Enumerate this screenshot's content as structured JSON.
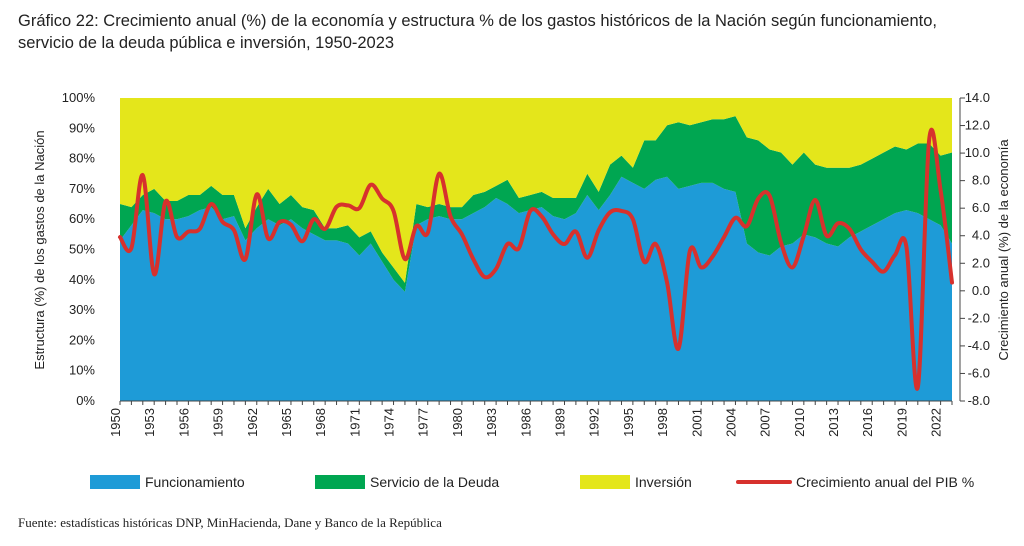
{
  "header": {
    "title_line1": "Gráfico 22: Crecimiento anual (%) de la economía y estructura % de los gastos históricos de la Nación según funcionamiento,",
    "title_line2": "servicio de la deuda pública e inversión, 1950-2023"
  },
  "footer": {
    "source": "Fuente: estadísticas históricas DNP, MinHacienda, Dane y Banco de la República"
  },
  "chart_data": {
    "type": "area",
    "ylabel_left": "Estructura (%) de los gastos de la Nación",
    "ylabel_right": "Crecimiento anual (%) de la economía",
    "ylim_left": [
      0,
      100
    ],
    "ylim_right": [
      -8,
      14
    ],
    "yticks_left": [
      "0%",
      "10%",
      "20%",
      "30%",
      "40%",
      "50%",
      "60%",
      "70%",
      "80%",
      "90%",
      "100%"
    ],
    "yticks_right": [
      "-8.0",
      "-6.0",
      "-4.0",
      "-2.0",
      "0.0",
      "2.0",
      "4.0",
      "6.0",
      "8.0",
      "10.0",
      "12.0",
      "14.0"
    ],
    "xticks": [
      "1950",
      "1953",
      "1956",
      "1959",
      "1962",
      "1965",
      "1968",
      "1971",
      "1974",
      "1977",
      "1980",
      "1983",
      "1986",
      "1989",
      "1992",
      "1995",
      "1998",
      "2001",
      "2004",
      "2007",
      "2010",
      "2013",
      "2016",
      "2019",
      "2022"
    ],
    "x": [
      1950,
      1951,
      1952,
      1953,
      1954,
      1955,
      1956,
      1957,
      1958,
      1959,
      1960,
      1961,
      1962,
      1963,
      1964,
      1965,
      1966,
      1967,
      1968,
      1969,
      1970,
      1971,
      1972,
      1973,
      1974,
      1975,
      1976,
      1977,
      1978,
      1979,
      1980,
      1981,
      1982,
      1983,
      1984,
      1985,
      1986,
      1987,
      1988,
      1989,
      1990,
      1991,
      1992,
      1993,
      1994,
      1995,
      1996,
      1997,
      1998,
      1999,
      2000,
      2001,
      2002,
      2003,
      2004,
      2005,
      2006,
      2007,
      2008,
      2009,
      2010,
      2011,
      2012,
      2013,
      2014,
      2015,
      2016,
      2017,
      2018,
      2019,
      2020,
      2021,
      2022,
      2023
    ],
    "legend": [
      "Funcionamiento",
      "Servicio de la Deuda",
      "Inversión",
      "Crecimiento anual del PIB %"
    ],
    "legend_position": "bottom",
    "series": [
      {
        "name": "Funcionamiento",
        "type": "area",
        "axis": "left",
        "color": "#1E9BD7",
        "values": [
          53,
          58,
          63,
          62,
          60,
          60,
          61,
          63,
          64,
          60,
          61,
          53,
          57,
          60,
          58,
          60,
          57,
          55,
          53,
          53,
          52,
          48,
          52,
          46,
          40,
          36,
          58,
          60,
          61,
          60,
          60,
          62,
          64,
          67,
          65,
          62,
          63,
          64,
          61,
          60,
          62,
          68,
          63,
          68,
          74,
          72,
          70,
          73,
          74,
          70,
          71,
          72,
          72,
          70,
          69,
          52,
          49,
          48,
          51,
          52,
          55,
          54,
          52,
          51,
          54,
          56,
          58,
          60,
          62,
          63,
          62,
          60,
          58,
          52
        ]
      },
      {
        "name": "Servicio de la Deuda",
        "type": "area",
        "axis": "left",
        "color": "#00A651",
        "values": [
          12,
          6,
          5,
          8,
          6,
          6,
          7,
          5,
          7,
          8,
          7,
          4,
          7,
          10,
          7,
          8,
          7,
          8,
          4,
          4,
          6,
          6,
          4,
          3,
          4,
          3,
          7,
          4,
          4,
          4,
          4,
          6,
          5,
          4,
          8,
          5,
          5,
          5,
          6,
          7,
          5,
          7,
          6,
          10,
          7,
          5,
          16,
          13,
          17,
          22,
          20,
          20,
          21,
          23,
          25,
          35,
          37,
          35,
          31,
          26,
          27,
          24,
          25,
          26,
          23,
          22,
          22,
          22,
          22,
          20,
          23,
          25,
          23,
          30
        ]
      },
      {
        "name": "Inversión",
        "type": "area",
        "axis": "left",
        "color": "#E4E61B",
        "values": [
          35,
          36,
          32,
          30,
          34,
          34,
          32,
          32,
          29,
          32,
          32,
          43,
          36,
          30,
          35,
          32,
          36,
          37,
          43,
          43,
          42,
          46,
          44,
          51,
          56,
          61,
          35,
          36,
          35,
          36,
          36,
          32,
          31,
          29,
          27,
          33,
          32,
          31,
          33,
          33,
          33,
          25,
          31,
          22,
          19,
          23,
          14,
          14,
          9,
          8,
          9,
          8,
          7,
          7,
          6,
          13,
          14,
          17,
          18,
          22,
          18,
          22,
          23,
          23,
          23,
          22,
          20,
          18,
          16,
          17,
          15,
          15,
          19,
          18
        ]
      },
      {
        "name": "Crecimiento anual del PIB %",
        "type": "line",
        "axis": "right",
        "color": "#D7312D",
        "values": [
          3.9,
          3.1,
          8.4,
          1.2,
          6.5,
          3.9,
          4.3,
          4.5,
          6.3,
          5.0,
          4.4,
          2.3,
          7.0,
          3.8,
          5.0,
          4.8,
          3.6,
          5.2,
          4.5,
          6.1,
          6.2,
          6.0,
          7.7,
          6.7,
          5.8,
          2.3,
          4.7,
          4.2,
          8.5,
          5.4,
          4.1,
          2.3,
          1.0,
          1.6,
          3.4,
          3.1,
          5.8,
          5.4,
          4.1,
          3.4,
          4.3,
          2.4,
          4.4,
          5.7,
          5.8,
          5.2,
          2.1,
          3.4,
          0.6,
          -4.2,
          2.9,
          1.7,
          2.5,
          3.9,
          5.3,
          4.7,
          6.7,
          6.9,
          3.5,
          1.7,
          4.0,
          6.6,
          4.0,
          4.9,
          4.5,
          3.0,
          2.1,
          1.4,
          2.6,
          3.2,
          -7.0,
          11.0,
          7.3,
          0.6
        ]
      }
    ]
  }
}
